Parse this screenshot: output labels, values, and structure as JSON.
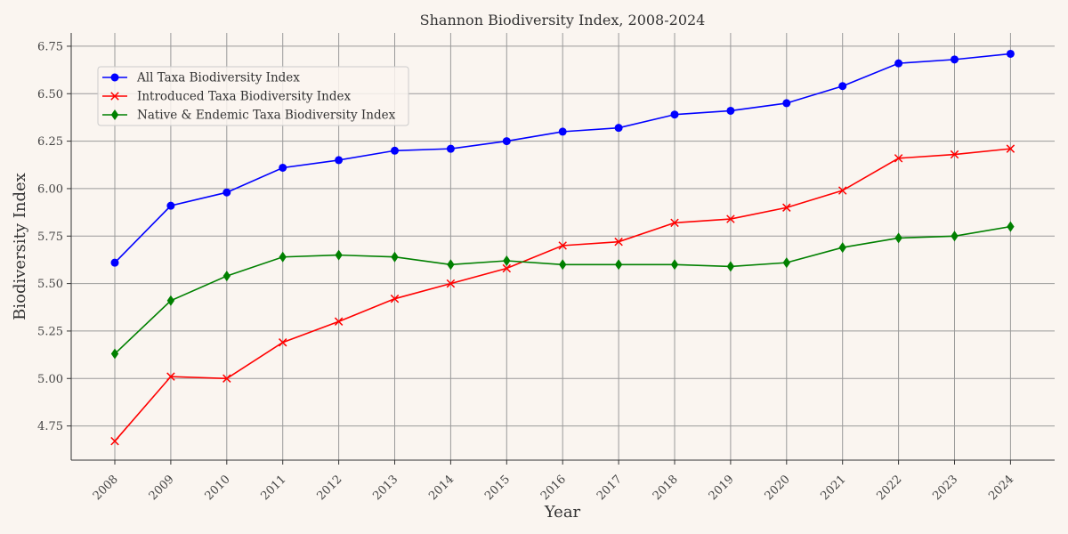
{
  "chart_data": {
    "type": "line",
    "title": "Shannon Biodiversity Index, 2008-2024",
    "xlabel": "Year",
    "ylabel": "Biodiversity Index",
    "categories": [
      "2008",
      "2009",
      "2010",
      "2011",
      "2012",
      "2013",
      "2014",
      "2015",
      "2016",
      "2017",
      "2018",
      "2019",
      "2020",
      "2021",
      "2022",
      "2023",
      "2024"
    ],
    "ylim": [
      4.57,
      6.82
    ],
    "yticks": [
      "4.75",
      "5.00",
      "5.25",
      "5.50",
      "5.75",
      "6.00",
      "6.25",
      "6.50",
      "6.75"
    ],
    "grid": true,
    "legend_position": "upper-left",
    "series": [
      {
        "name": "All Taxa Biodiversity Index",
        "color": "#0000ff",
        "marker": "circle",
        "values": [
          5.61,
          5.91,
          5.98,
          6.11,
          6.15,
          6.2,
          6.21,
          6.25,
          6.3,
          6.32,
          6.39,
          6.41,
          6.45,
          6.54,
          6.66,
          6.68,
          6.71
        ]
      },
      {
        "name": "Introduced Taxa Biodiversity Index",
        "color": "#ff0000",
        "marker": "x",
        "values": [
          4.67,
          5.01,
          5.0,
          5.19,
          5.3,
          5.42,
          5.5,
          5.58,
          5.7,
          5.72,
          5.82,
          5.84,
          5.9,
          5.99,
          6.16,
          6.18,
          6.21
        ]
      },
      {
        "name": "Native & Endemic Taxa Biodiversity Index",
        "color": "#008000",
        "marker": "diamond",
        "values": [
          5.13,
          5.41,
          5.54,
          5.64,
          5.65,
          5.64,
          5.6,
          5.62,
          5.6,
          5.6,
          5.6,
          5.59,
          5.61,
          5.69,
          5.74,
          5.75,
          5.8
        ]
      }
    ]
  }
}
